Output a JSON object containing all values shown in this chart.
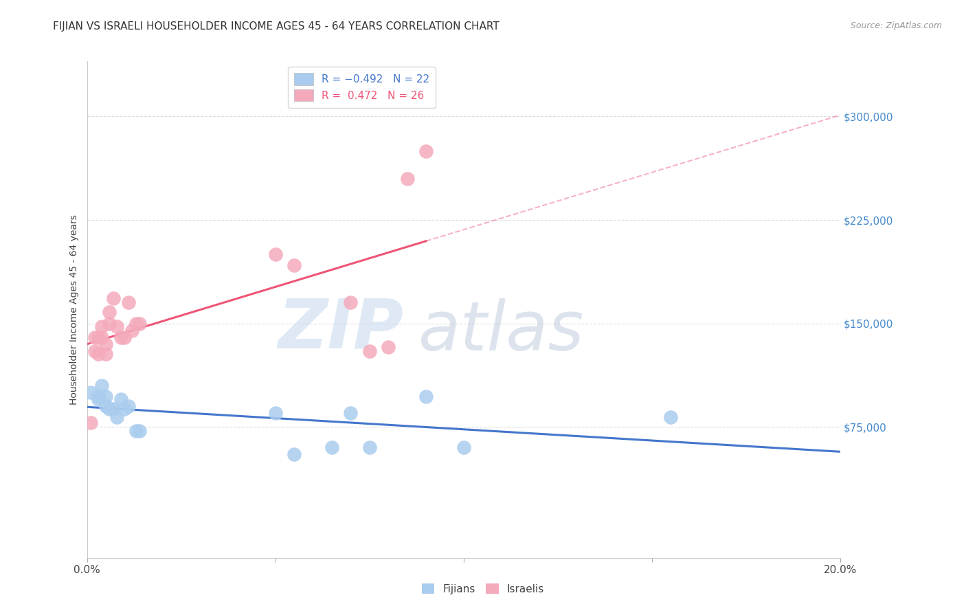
{
  "title": "FIJIAN VS ISRAELI HOUSEHOLDER INCOME AGES 45 - 64 YEARS CORRELATION CHART",
  "source": "Source: ZipAtlas.com",
  "ylabel": "Householder Income Ages 45 - 64 years",
  "xlim": [
    0.0,
    0.2
  ],
  "ylim": [
    -20000,
    340000
  ],
  "yticks": [
    75000,
    150000,
    225000,
    300000
  ],
  "ytick_labels": [
    "$75,000",
    "$150,000",
    "$225,000",
    "$300,000"
  ],
  "watermark_zip": "ZIP",
  "watermark_atlas": "atlas",
  "fijian_color": "#aaccee",
  "israeli_color": "#f4aabb",
  "fijian_line_color": "#4477cc",
  "israeli_line_color": "#ee5577",
  "fijian_R": -0.492,
  "fijian_N": 22,
  "israeli_R": 0.472,
  "israeli_N": 26,
  "fijians_x": [
    0.001,
    0.003,
    0.003,
    0.004,
    0.005,
    0.005,
    0.006,
    0.007,
    0.008,
    0.009,
    0.01,
    0.011,
    0.013,
    0.014,
    0.05,
    0.055,
    0.065,
    0.07,
    0.075,
    0.09,
    0.1,
    0.155
  ],
  "fijians_y": [
    100000,
    97000,
    95000,
    105000,
    97000,
    90000,
    88000,
    88000,
    82000,
    95000,
    88000,
    90000,
    72000,
    72000,
    85000,
    55000,
    60000,
    85000,
    60000,
    97000,
    60000,
    82000
  ],
  "israelis_x": [
    0.001,
    0.002,
    0.002,
    0.003,
    0.003,
    0.004,
    0.004,
    0.005,
    0.005,
    0.006,
    0.006,
    0.007,
    0.008,
    0.009,
    0.01,
    0.011,
    0.012,
    0.013,
    0.014,
    0.05,
    0.055,
    0.07,
    0.075,
    0.08,
    0.085,
    0.09
  ],
  "israelis_y": [
    78000,
    130000,
    140000,
    128000,
    140000,
    148000,
    140000,
    135000,
    128000,
    158000,
    150000,
    168000,
    148000,
    140000,
    140000,
    165000,
    145000,
    150000,
    150000,
    200000,
    192000,
    165000,
    130000,
    133000,
    255000,
    275000
  ],
  "background_color": "#ffffff",
  "grid_color": "#dddddd",
  "ytick_color": "#4488cc",
  "title_fontsize": 11,
  "legend_fontsize": 11
}
